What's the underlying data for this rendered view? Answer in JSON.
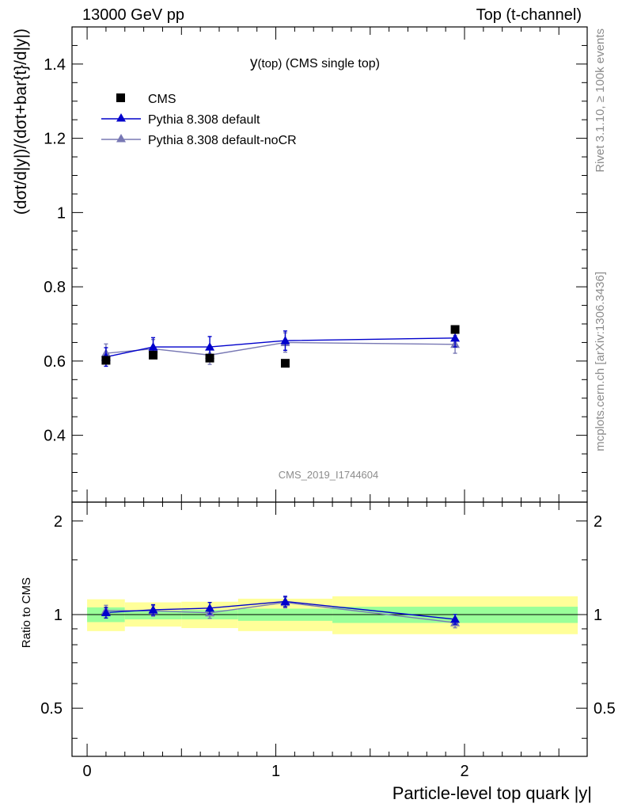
{
  "header": {
    "left": "13000 GeV pp",
    "right": "Top (t-channel)"
  },
  "side_labels": {
    "rivet": "Rivet 3.1.10, ≥ 100k events",
    "mcplots": "mcplots.cern.ch [arXiv:1306.3436]"
  },
  "plot_title": "(CMS single top)",
  "plot_title_var": "y",
  "plot_title_sub": "(top)",
  "watermark": "CMS_2019_I1744604",
  "colors": {
    "data": "#000000",
    "default": "#0000cc",
    "noCR": "#7878b4",
    "band_inner": "#99ff99",
    "band_outer": "#ffff99"
  },
  "chart_data": [
    {
      "type": "scatter",
      "panel": "main",
      "ylabel": "(dσt/d|y|)/(dσt+bar{t}/d|y|)",
      "xlim": [
        -0.08,
        2.65
      ],
      "ylim": [
        0.22,
        1.5
      ],
      "yticks": [
        0.4,
        0.6,
        0.8,
        1,
        1.2,
        1.4
      ],
      "ytick_labels": [
        "0.4",
        "0.6",
        "0.8",
        "1",
        "1.2",
        "1.4"
      ],
      "legend": [
        "CMS",
        "Pythia 8.308 default",
        "Pythia 8.308 default-noCR"
      ],
      "legend_position": "top-left",
      "series": [
        {
          "name": "CMS",
          "style": "square",
          "x": [
            0.1,
            0.35,
            0.65,
            1.05,
            1.95
          ],
          "xlow": [
            0.0,
            0.2,
            0.5,
            0.8,
            1.3
          ],
          "xhigh": [
            0.2,
            0.5,
            0.8,
            1.3,
            2.6
          ],
          "y": [
            0.602,
            0.616,
            0.608,
            0.594,
            0.685
          ]
        },
        {
          "name": "Pythia 8.308 default",
          "style": "triangle-line",
          "x": [
            0.1,
            0.35,
            0.65,
            1.05,
            1.95
          ],
          "y": [
            0.611,
            0.638,
            0.638,
            0.655,
            0.662
          ],
          "err": [
            0.025,
            0.025,
            0.028,
            0.026,
            0.024
          ]
        },
        {
          "name": "Pythia 8.308 default-noCR",
          "style": "triangle-line",
          "x": [
            0.1,
            0.35,
            0.65,
            1.05,
            1.95
          ],
          "y": [
            0.621,
            0.633,
            0.616,
            0.65,
            0.645
          ],
          "err": [
            0.025,
            0.025,
            0.025,
            0.026,
            0.024
          ]
        }
      ]
    },
    {
      "type": "scatter",
      "panel": "ratio",
      "ylabel": "Ratio to CMS",
      "xlabel": "Particle-level top quark |y|",
      "xlim": [
        -0.08,
        2.65
      ],
      "ylim": [
        0.35,
        2.3
      ],
      "yticks": [
        0.5,
        1,
        2
      ],
      "ytick_labels": [
        "0.5",
        "1",
        "2"
      ],
      "xticks": [
        0,
        1,
        2
      ],
      "xtick_labels": [
        "0",
        "1",
        "2"
      ],
      "bands": [
        {
          "xlow": 0.0,
          "xhigh": 0.2,
          "inner": [
            0.946,
            1.055
          ],
          "outer": [
            0.885,
            1.12
          ]
        },
        {
          "xlow": 0.2,
          "xhigh": 0.5,
          "inner": [
            0.965,
            1.03
          ],
          "outer": [
            0.915,
            1.095
          ]
        },
        {
          "xlow": 0.5,
          "xhigh": 0.8,
          "inner": [
            0.965,
            1.035
          ],
          "outer": [
            0.905,
            1.1
          ]
        },
        {
          "xlow": 0.8,
          "xhigh": 1.3,
          "inner": [
            0.955,
            1.045
          ],
          "outer": [
            0.885,
            1.125
          ]
        },
        {
          "xlow": 1.3,
          "xhigh": 2.6,
          "inner": [
            0.94,
            1.06
          ],
          "outer": [
            0.865,
            1.145
          ]
        }
      ],
      "series": [
        {
          "name": "Pythia 8.308 default",
          "x": [
            0.1,
            0.35,
            0.65,
            1.05,
            1.95
          ],
          "y": [
            1.015,
            1.036,
            1.049,
            1.102,
            0.966
          ],
          "err": [
            0.04,
            0.04,
            0.045,
            0.043,
            0.035
          ]
        },
        {
          "name": "Pythia 8.308 default-noCR",
          "x": [
            0.1,
            0.35,
            0.65,
            1.05,
            1.95
          ],
          "y": [
            1.031,
            1.028,
            1.013,
            1.094,
            0.942
          ],
          "err": [
            0.04,
            0.04,
            0.04,
            0.043,
            0.035
          ]
        }
      ]
    }
  ]
}
